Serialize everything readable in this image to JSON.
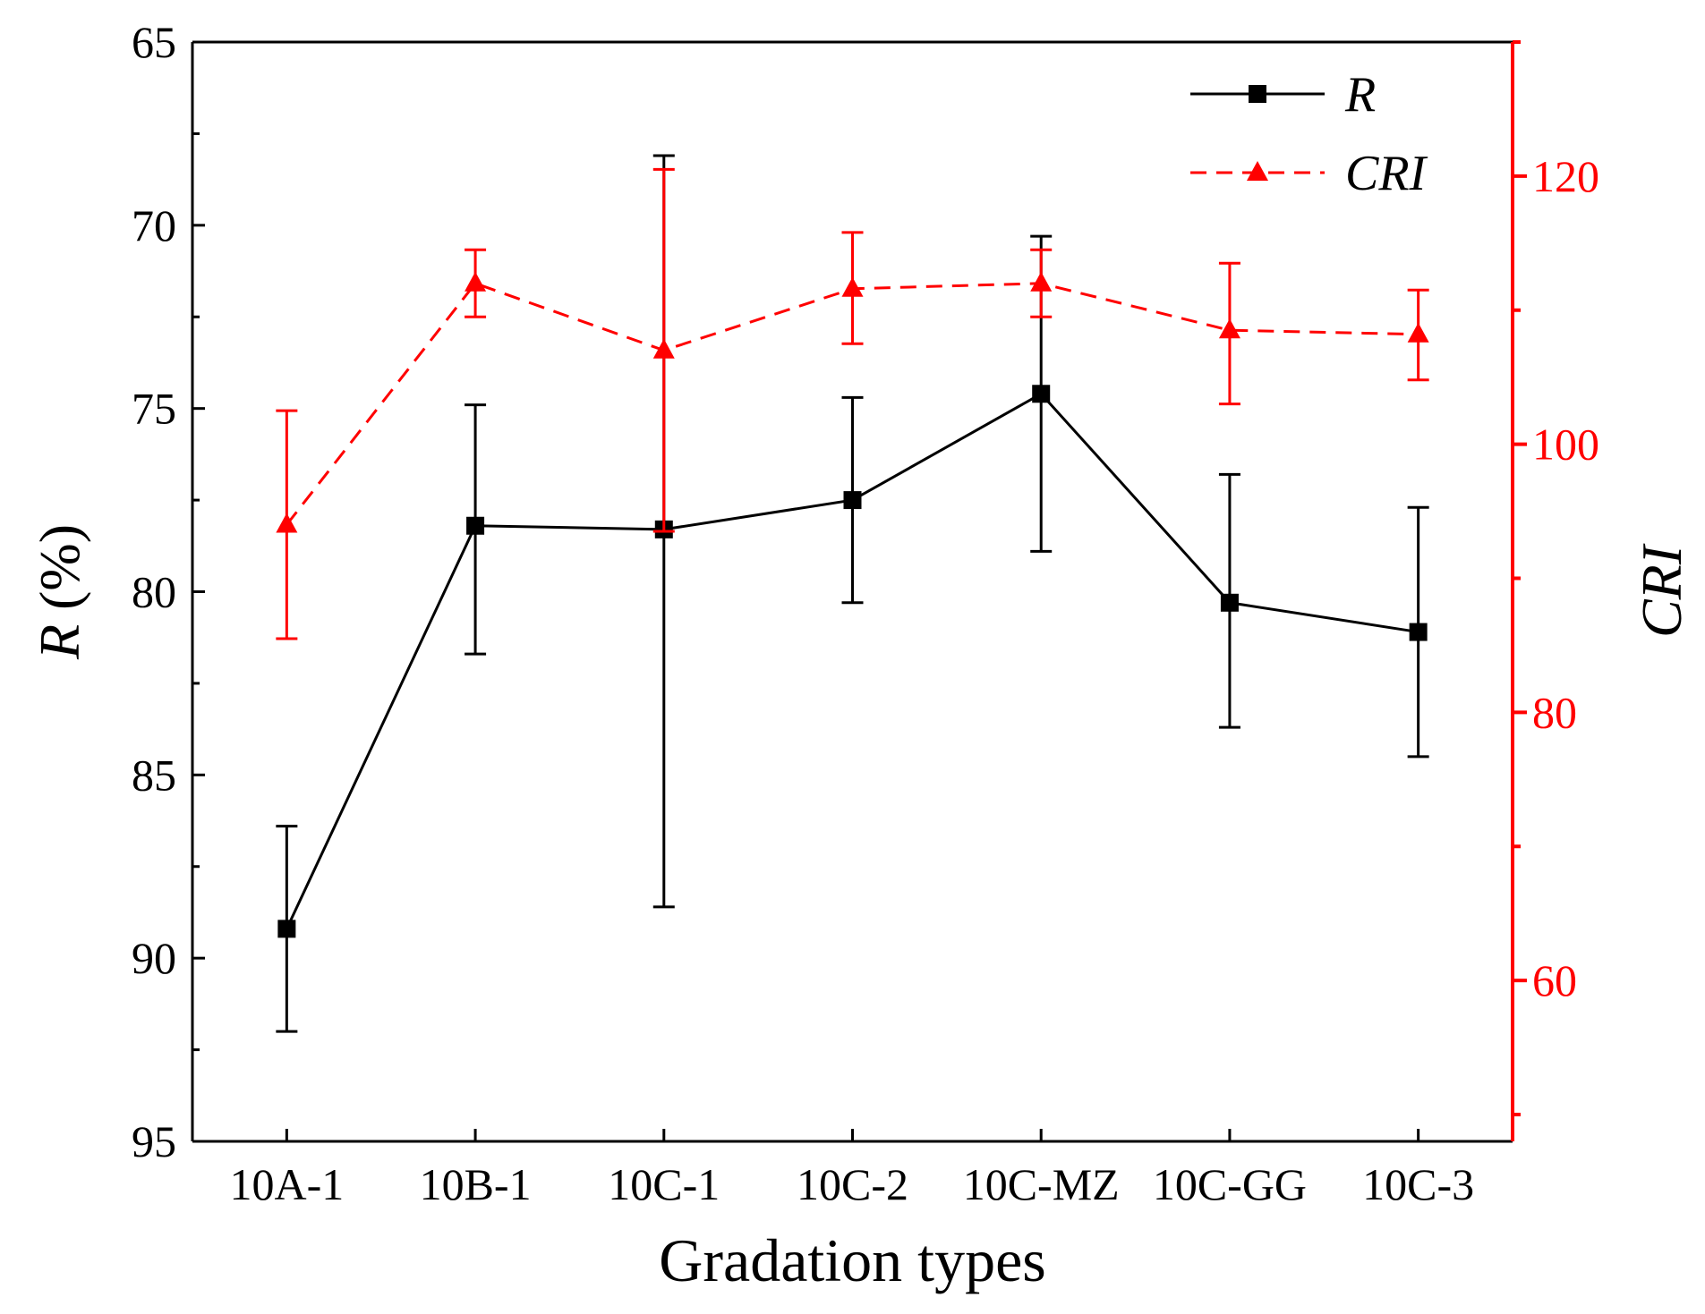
{
  "chart_data": {
    "type": "line",
    "title": "",
    "categories": [
      "10A-1",
      "10B-1",
      "10C-1",
      "10C-2",
      "10C-MZ",
      "10C-GG",
      "10C-3"
    ],
    "xlabel": "Gradation types",
    "ylabel_left": {
      "italic": "R",
      "rest": " (%)"
    },
    "ylabel_right": "CRI",
    "left_axis": {
      "ylim": [
        95,
        65
      ],
      "inverted": true,
      "ticks": [
        65,
        70,
        75,
        80,
        85,
        90,
        95
      ],
      "color": "#000000"
    },
    "right_axis": {
      "ylim": [
        48,
        130
      ],
      "ticks": [
        60,
        80,
        100,
        120
      ],
      "color": "#ff0000"
    },
    "series": [
      {
        "name": "R",
        "axis": "left",
        "color": "#000000",
        "line_style": "solid",
        "marker": "square",
        "values": [
          89.2,
          78.2,
          78.3,
          77.5,
          74.6,
          80.3,
          81.1
        ],
        "err_low": [
          92.0,
          81.7,
          88.6,
          80.3,
          78.9,
          83.7,
          84.5
        ],
        "err_high": [
          86.4,
          74.9,
          68.1,
          74.7,
          70.3,
          76.8,
          77.7
        ]
      },
      {
        "name": "CRI",
        "axis": "right",
        "color": "#ff0000",
        "line_style": "dashed",
        "marker": "triangle",
        "values": [
          94.0,
          112.0,
          107.0,
          111.6,
          112.0,
          108.5,
          108.2
        ],
        "err_low": [
          85.5,
          109.5,
          93.5,
          107.5,
          109.5,
          103.0,
          104.8
        ],
        "err_high": [
          102.5,
          114.5,
          120.5,
          115.8,
          114.5,
          113.5,
          111.5
        ]
      }
    ],
    "legend": {
      "position": "top-right",
      "entries": [
        "R",
        "CRI"
      ]
    }
  }
}
